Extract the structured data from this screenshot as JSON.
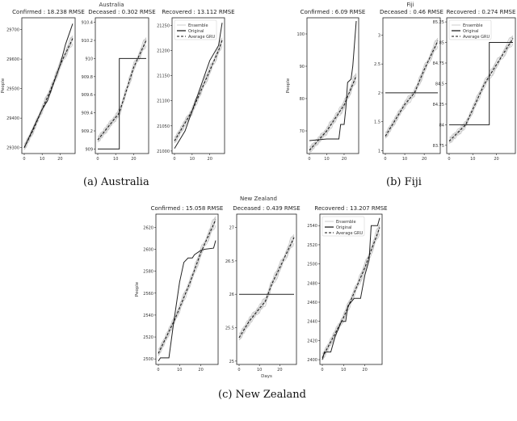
{
  "captions": {
    "a": "(a) Australia",
    "b": "(b) Fiji",
    "c": "(c) New Zealand"
  },
  "legend": {
    "ensemble": "Ensemble",
    "original": "Original",
    "average": "Average GRU"
  },
  "colors": {
    "ensemble": "#c8c8c8",
    "original": "#222222",
    "average": "#111111"
  },
  "chart_data": [
    {
      "type": "line",
      "figure": "Australia",
      "title": "Confirmed : 18.238 RMSE",
      "ylabel": "People",
      "xlabel": "",
      "xticks": [
        0,
        10,
        20
      ],
      "xlim": [
        0,
        27
      ],
      "ylim": [
        29280,
        29740
      ],
      "yticks": [
        29300,
        29400,
        29500,
        29600,
        29700
      ],
      "legend": false,
      "original": [
        [
          0,
          29300
        ],
        [
          10,
          29430
        ],
        [
          13,
          29460
        ],
        [
          20,
          29580
        ],
        [
          23,
          29650
        ],
        [
          27,
          29720
        ]
      ],
      "average": [
        [
          0,
          29300
        ],
        [
          5,
          29360
        ],
        [
          10,
          29430
        ],
        [
          15,
          29500
        ],
        [
          20,
          29580
        ],
        [
          27,
          29670
        ]
      ]
    },
    {
      "type": "line",
      "figure": "Australia",
      "title": "Deceased : 0.302 RMSE",
      "ylabel": "",
      "xlabel": "",
      "xticks": [
        0,
        10,
        20
      ],
      "xlim": [
        0,
        27
      ],
      "ylim": [
        908.95,
        910.45
      ],
      "yticks": [
        909.0,
        909.2,
        909.4,
        909.6,
        909.8,
        910.0,
        910.2,
        910.4
      ],
      "legend": false,
      "original": [
        [
          0,
          909.0
        ],
        [
          12,
          909.0
        ],
        [
          12,
          910.0
        ],
        [
          27,
          910.0
        ]
      ],
      "average": [
        [
          0,
          909.1
        ],
        [
          12,
          909.4
        ],
        [
          20,
          909.9
        ],
        [
          27,
          910.2
        ]
      ]
    },
    {
      "type": "line",
      "figure": "Australia",
      "title": "Recovered : 13.112 RMSE",
      "ylabel": "",
      "xlabel": "",
      "xticks": [
        0,
        10,
        20
      ],
      "xlim": [
        0,
        27
      ],
      "ylim": [
        20995,
        21265
      ],
      "yticks": [
        21000,
        21050,
        21100,
        21150,
        21200,
        21250
      ],
      "legend": true,
      "original": [
        [
          0,
          21005
        ],
        [
          6,
          21040
        ],
        [
          15,
          21130
        ],
        [
          20,
          21180
        ],
        [
          25,
          21210
        ],
        [
          27,
          21255
        ]
      ],
      "average": [
        [
          0,
          21020
        ],
        [
          10,
          21080
        ],
        [
          20,
          21160
        ],
        [
          25,
          21200
        ],
        [
          27,
          21220
        ]
      ]
    },
    {
      "type": "line",
      "figure": "Fiji",
      "title": "Confirmed : 6.09 RMSE",
      "ylabel": "People",
      "xlabel": "",
      "xticks": [
        0,
        10,
        20
      ],
      "xlim": [
        0,
        27
      ],
      "ylim": [
        63,
        105
      ],
      "yticks": [
        60,
        70,
        80,
        90,
        100
      ],
      "legend": false,
      "original": [
        [
          0,
          67
        ],
        [
          10,
          67.5
        ],
        [
          17,
          67.5
        ],
        [
          18,
          72
        ],
        [
          20,
          72
        ],
        [
          21,
          77
        ],
        [
          22,
          85
        ],
        [
          24,
          86
        ],
        [
          25,
          90
        ],
        [
          27,
          104
        ]
      ],
      "average": [
        [
          0,
          64
        ],
        [
          10,
          70
        ],
        [
          20,
          78
        ],
        [
          27,
          87
        ]
      ]
    },
    {
      "type": "line",
      "figure": "Fiji",
      "title": "Deceased : 0.46 RMSE",
      "ylabel": "",
      "xlabel": "",
      "xticks": [
        0,
        10,
        20
      ],
      "xlim": [
        0,
        27
      ],
      "ylim": [
        0.95,
        3.3
      ],
      "yticks": [
        1.0,
        1.5,
        2.0,
        2.5,
        3.0
      ],
      "legend": false,
      "original": [
        [
          0,
          2.0
        ],
        [
          27,
          2.0
        ]
      ],
      "average": [
        [
          0,
          1.25
        ],
        [
          10,
          1.8
        ],
        [
          15,
          2.0
        ],
        [
          20,
          2.4
        ],
        [
          27,
          2.9
        ]
      ]
    },
    {
      "type": "line",
      "figure": "Fiji",
      "title": "Recovered : 0.274 RMSE",
      "ylabel": "",
      "xlabel": "",
      "xticks": [
        0,
        10,
        20
      ],
      "xlim": [
        0,
        27
      ],
      "ylim": [
        83.65,
        85.3
      ],
      "yticks": [
        83.75,
        84.0,
        84.25,
        84.5,
        84.75,
        85.0,
        85.25
      ],
      "legend": true,
      "original": [
        [
          0,
          84.0
        ],
        [
          17,
          84.0
        ],
        [
          17,
          85.0
        ],
        [
          27,
          85.0
        ]
      ],
      "average": [
        [
          0,
          83.8
        ],
        [
          7,
          84.0
        ],
        [
          15,
          84.5
        ],
        [
          27,
          85.05
        ]
      ]
    },
    {
      "type": "line",
      "figure": "New Zealand",
      "title": "Confirmed : 15.058 RMSE",
      "ylabel": "People",
      "xlabel": "",
      "xticks": [
        0,
        10,
        20
      ],
      "xlim": [
        0,
        27
      ],
      "ylim": [
        2495,
        2632
      ],
      "yticks": [
        2500,
        2520,
        2540,
        2560,
        2580,
        2600,
        2620
      ],
      "legend": false,
      "original": [
        [
          0,
          2498
        ],
        [
          1,
          2501
        ],
        [
          5,
          2501
        ],
        [
          7,
          2530
        ],
        [
          10,
          2570
        ],
        [
          12,
          2588
        ],
        [
          14,
          2592
        ],
        [
          16,
          2592
        ],
        [
          17,
          2595
        ],
        [
          20,
          2599
        ],
        [
          22,
          2600
        ],
        [
          26,
          2601
        ],
        [
          27,
          2608
        ]
      ],
      "average": [
        [
          0,
          2505
        ],
        [
          8,
          2537
        ],
        [
          15,
          2570
        ],
        [
          20,
          2597
        ],
        [
          27,
          2627
        ]
      ]
    },
    {
      "type": "line",
      "figure": "New Zealand",
      "title": "Deceased : 0.439 RMSE",
      "ylabel": "",
      "xlabel": "Days",
      "xticks": [
        0,
        10,
        20
      ],
      "xlim": [
        0,
        27
      ],
      "ylim": [
        24.95,
        27.2
      ],
      "yticks": [
        25.0,
        25.5,
        26.0,
        26.5,
        27.0
      ],
      "legend": false,
      "original": [
        [
          0,
          26.0
        ],
        [
          27,
          26.0
        ]
      ],
      "average": [
        [
          0,
          25.35
        ],
        [
          5,
          25.6
        ],
        [
          13,
          25.9
        ],
        [
          16,
          26.15
        ],
        [
          20,
          26.4
        ],
        [
          27,
          26.85
        ]
      ]
    },
    {
      "type": "line",
      "figure": "New Zealand",
      "title": "Recovered : 13.207 RMSE",
      "ylabel": "",
      "xlabel": "",
      "xticks": [
        0,
        10,
        20
      ],
      "xlim": [
        0,
        27
      ],
      "ylim": [
        2395,
        2552
      ],
      "yticks": [
        2400,
        2420,
        2440,
        2460,
        2480,
        2500,
        2520,
        2540
      ],
      "legend": true,
      "original": [
        [
          0,
          2400
        ],
        [
          1,
          2408
        ],
        [
          4,
          2408
        ],
        [
          6,
          2424
        ],
        [
          9,
          2440
        ],
        [
          11,
          2440
        ],
        [
          12,
          2456
        ],
        [
          15,
          2464
        ],
        [
          18,
          2464
        ],
        [
          20,
          2488
        ],
        [
          22,
          2504
        ],
        [
          23,
          2540
        ],
        [
          26,
          2540
        ],
        [
          27,
          2548
        ]
      ],
      "average": [
        [
          0,
          2402
        ],
        [
          10,
          2444
        ],
        [
          20,
          2496
        ],
        [
          27,
          2538
        ]
      ]
    }
  ],
  "suptitles": [
    "Australia",
    "Fiji",
    "New Zealand"
  ]
}
